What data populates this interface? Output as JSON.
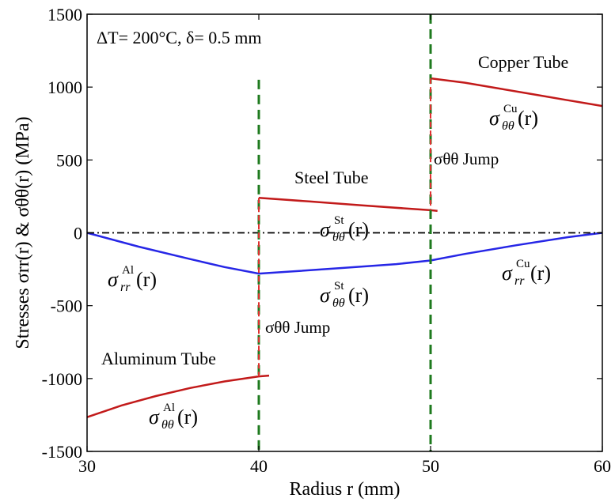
{
  "chart_data": {
    "type": "line",
    "xlabel": "Radius r (mm)",
    "ylabel": "Stresses σrr(r) & σθθ(r) (MPa)",
    "xlim": [
      30,
      60
    ],
    "ylim": [
      -1500,
      1500
    ],
    "xticks": [
      30,
      40,
      50,
      60
    ],
    "yticks": [
      -1500,
      -1000,
      -500,
      0,
      500,
      1000,
      1500
    ],
    "grid": false,
    "legend": "none",
    "series": [
      {
        "color": "#2626e6",
        "style": "solid",
        "x": [
          30,
          33,
          36,
          38,
          40,
          42,
          45,
          48,
          50,
          52,
          55,
          58,
          60
        ],
        "y": [
          0,
          -95,
          -180,
          -235,
          -280,
          -265,
          -240,
          -215,
          -190,
          -145,
          -85,
          -30,
          0
        ]
      },
      {
        "color": "#c21a1a",
        "style": "solid",
        "x": [
          30,
          32,
          34,
          36,
          38,
          40,
          40.6
        ],
        "y": [
          -1265,
          -1185,
          -1120,
          -1065,
          -1020,
          -985,
          -980
        ]
      },
      {
        "color": "#c21a1a",
        "style": "solid",
        "x": [
          40,
          43,
          46,
          50,
          50.4
        ],
        "y": [
          240,
          215,
          188,
          155,
          150
        ]
      },
      {
        "color": "#c21a1a",
        "style": "solid",
        "x": [
          50,
          52,
          54,
          56,
          58,
          60
        ],
        "y": [
          1060,
          1030,
          990,
          950,
          910,
          870
        ]
      },
      {
        "color": "#000000",
        "style": "dashdot",
        "x": [
          30,
          60
        ],
        "y": [
          0,
          0
        ]
      },
      {
        "color": "#1e7a1e",
        "style": "dashed",
        "x": [
          40,
          40
        ],
        "y": [
          1050,
          -1500
        ]
      },
      {
        "color": "#1e7a1e",
        "style": "dashed",
        "x": [
          50,
          50
        ],
        "y": [
          1500,
          -1500
        ]
      },
      {
        "color": "#e03030",
        "style": "dashed",
        "x": [
          40,
          40
        ],
        "y": [
          240,
          -985
        ]
      },
      {
        "color": "#e03030",
        "style": "dashed",
        "x": [
          50,
          50
        ],
        "y": [
          1060,
          155
        ]
      }
    ],
    "annotations": {
      "condition": "ΔT= 200°C, δ= 0.5 mm",
      "copper_tube": "Copper Tube",
      "steel_tube": "Steel Tube",
      "aluminum_tube": "Aluminum Tube",
      "jump_1": "σθθ Jump",
      "jump_2": "σθθ Jump",
      "sym_sigma": "σ",
      "sym_theta_theta": "θθ",
      "sym_rr": "rr",
      "sym_arg": "(r)",
      "sup_cu": "Cu",
      "sup_st": "St",
      "sup_al": "Al"
    }
  }
}
